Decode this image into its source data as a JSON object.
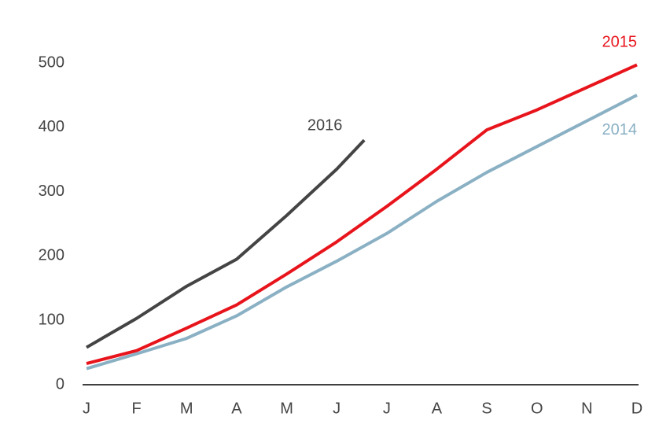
{
  "chart_data": {
    "type": "line",
    "xlim": [
      1,
      12
    ],
    "xticks": [
      {
        "value": 1,
        "label": "J"
      },
      {
        "value": 2,
        "label": "F"
      },
      {
        "value": 3,
        "label": "M"
      },
      {
        "value": 4,
        "label": "A"
      },
      {
        "value": 5,
        "label": "M"
      },
      {
        "value": 6,
        "label": "J"
      },
      {
        "value": 7,
        "label": "J"
      },
      {
        "value": 8,
        "label": "A"
      },
      {
        "value": 9,
        "label": "S"
      },
      {
        "value": 10,
        "label": "O"
      },
      {
        "value": 11,
        "label": "N"
      },
      {
        "value": 12,
        "label": "D"
      }
    ],
    "ylim": [
      0,
      500
    ],
    "yticks": [
      0,
      100,
      200,
      300,
      400,
      500
    ],
    "grid": false,
    "series": [
      {
        "name": "2016",
        "color": "#444444",
        "x": [
          1,
          2,
          3,
          4,
          5,
          6,
          6.55
        ],
        "values": [
          58,
          103,
          153,
          195,
          263,
          335,
          380
        ]
      },
      {
        "name": "2015",
        "color": "#e8141c",
        "x": [
          1,
          2,
          3,
          4,
          5,
          6,
          7,
          8,
          9,
          10,
          11,
          12
        ],
        "values": [
          33,
          53,
          88,
          124,
          172,
          222,
          277,
          335,
          396,
          427,
          462,
          497
        ]
      },
      {
        "name": "2014",
        "color": "#8ab0c4",
        "x": [
          1,
          2,
          3,
          4,
          5,
          6,
          7,
          8,
          9,
          10,
          11,
          12
        ],
        "values": [
          25,
          48,
          72,
          107,
          152,
          192,
          235,
          285,
          330,
          370,
          410,
          450
        ]
      }
    ]
  }
}
